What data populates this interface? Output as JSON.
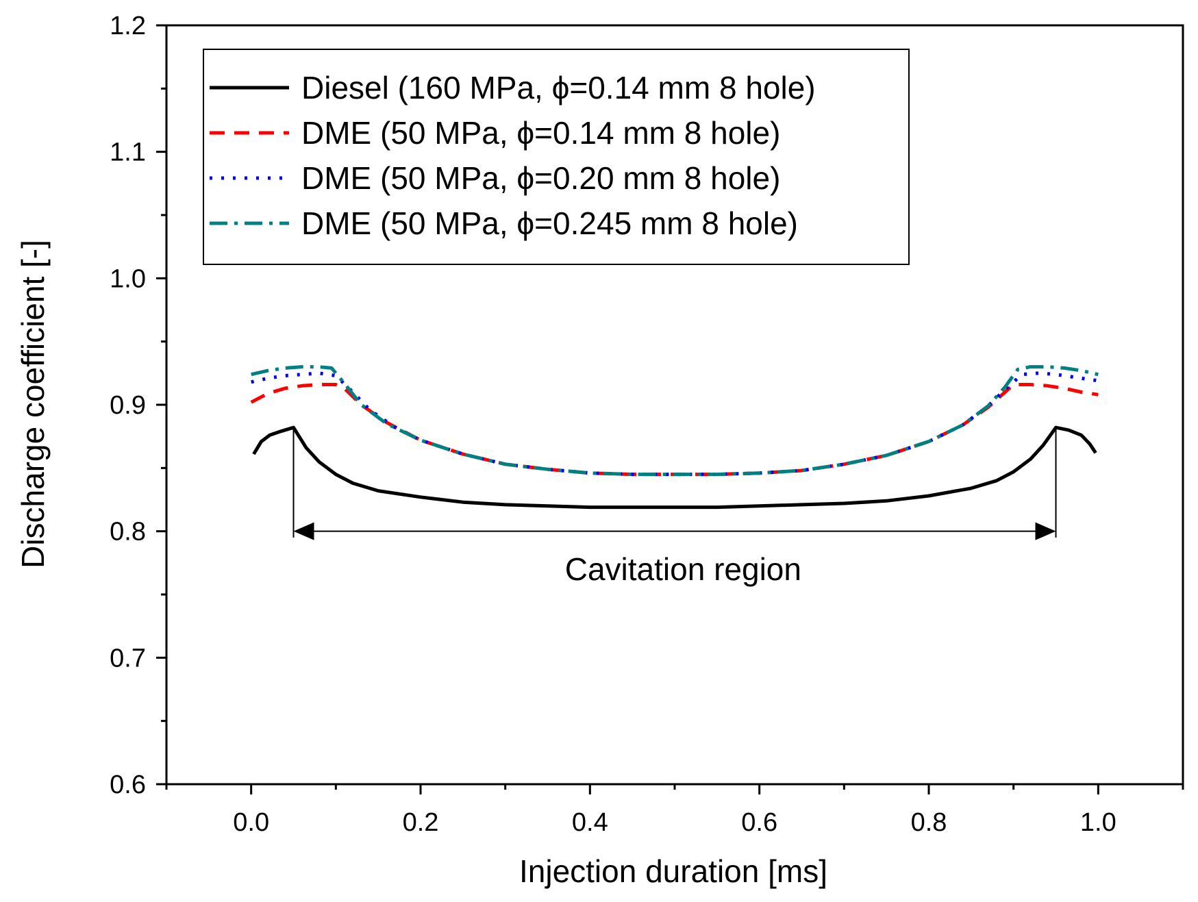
{
  "chart_data": {
    "type": "line",
    "title": "",
    "xlabel": "Injection duration [ms]",
    "ylabel": "Discharge coefficient [-]",
    "xlim": [
      -0.1,
      1.1
    ],
    "ylim": [
      0.6,
      1.2
    ],
    "xticks": [
      0.0,
      0.2,
      0.4,
      0.6,
      0.8,
      1.0
    ],
    "xtick_labels": [
      "0.0",
      "0.2",
      "0.4",
      "0.6",
      "0.8",
      "1.0"
    ],
    "xminor": [
      -0.1,
      0.1,
      0.3,
      0.5,
      0.7,
      0.9,
      1.1
    ],
    "yticks": [
      0.6,
      0.7,
      0.8,
      0.9,
      1.0,
      1.1,
      1.2
    ],
    "ytick_labels": [
      "0.6",
      "0.7",
      "0.8",
      "0.9",
      "1.0",
      "1.1",
      "1.2"
    ],
    "yminor": [
      0.65,
      0.75,
      0.85,
      0.95,
      1.05,
      1.15
    ],
    "legend_position": "top-left",
    "series": [
      {
        "name": "Diesel (160 MPa, ϕ=0.14 mm 8 hole)",
        "color": "#000000",
        "dash": "solid",
        "x": [
          0.003,
          0.012,
          0.022,
          0.035,
          0.05,
          0.065,
          0.08,
          0.1,
          0.12,
          0.15,
          0.2,
          0.25,
          0.3,
          0.35,
          0.4,
          0.45,
          0.5,
          0.55,
          0.6,
          0.65,
          0.7,
          0.75,
          0.8,
          0.85,
          0.88,
          0.9,
          0.92,
          0.935,
          0.95,
          0.965,
          0.98,
          0.99,
          0.997
        ],
        "y": [
          0.861,
          0.871,
          0.876,
          0.879,
          0.882,
          0.866,
          0.855,
          0.845,
          0.838,
          0.832,
          0.827,
          0.823,
          0.821,
          0.82,
          0.819,
          0.819,
          0.819,
          0.819,
          0.82,
          0.821,
          0.822,
          0.824,
          0.828,
          0.834,
          0.84,
          0.847,
          0.857,
          0.868,
          0.882,
          0.88,
          0.876,
          0.869,
          0.862
        ]
      },
      {
        "name": "DME (50 MPa, ϕ=0.14 mm 8 hole)",
        "color": "#ff0000",
        "dash": "dash",
        "x": [
          0.0,
          0.02,
          0.04,
          0.06,
          0.08,
          0.1,
          0.11,
          0.13,
          0.16,
          0.2,
          0.25,
          0.3,
          0.35,
          0.4,
          0.45,
          0.5,
          0.55,
          0.6,
          0.65,
          0.7,
          0.75,
          0.8,
          0.84,
          0.87,
          0.89,
          0.9,
          0.92,
          0.94,
          0.96,
          0.98,
          1.0
        ],
        "y": [
          0.902,
          0.909,
          0.913,
          0.915,
          0.916,
          0.916,
          0.913,
          0.9,
          0.886,
          0.872,
          0.861,
          0.853,
          0.849,
          0.846,
          0.845,
          0.845,
          0.845,
          0.846,
          0.848,
          0.853,
          0.86,
          0.871,
          0.884,
          0.898,
          0.91,
          0.916,
          0.916,
          0.915,
          0.913,
          0.91,
          0.908
        ]
      },
      {
        "name": "DME (50 MPa, ϕ=0.20 mm 8 hole)",
        "color": "#0000ff",
        "dash": "dot",
        "x": [
          0.0,
          0.02,
          0.04,
          0.06,
          0.08,
          0.1,
          0.12,
          0.14,
          0.17,
          0.2,
          0.25,
          0.3,
          0.35,
          0.4,
          0.45,
          0.5,
          0.55,
          0.6,
          0.65,
          0.7,
          0.75,
          0.8,
          0.84,
          0.87,
          0.89,
          0.91,
          0.93,
          0.95,
          0.97,
          0.99,
          1.0
        ],
        "y": [
          0.918,
          0.921,
          0.923,
          0.924,
          0.925,
          0.923,
          0.91,
          0.896,
          0.882,
          0.872,
          0.861,
          0.853,
          0.849,
          0.846,
          0.845,
          0.845,
          0.845,
          0.846,
          0.848,
          0.853,
          0.86,
          0.871,
          0.884,
          0.899,
          0.912,
          0.924,
          0.925,
          0.924,
          0.922,
          0.92,
          0.919
        ]
      },
      {
        "name": "DME (50 MPa, ϕ=0.245 mm 8 hole)",
        "color": "#008080",
        "dash": "dashdot",
        "x": [
          0.0,
          0.02,
          0.04,
          0.06,
          0.08,
          0.095,
          0.11,
          0.13,
          0.16,
          0.2,
          0.25,
          0.3,
          0.35,
          0.4,
          0.45,
          0.5,
          0.55,
          0.6,
          0.65,
          0.7,
          0.75,
          0.8,
          0.84,
          0.87,
          0.89,
          0.905,
          0.92,
          0.94,
          0.96,
          0.98,
          1.0
        ],
        "y": [
          0.924,
          0.927,
          0.929,
          0.93,
          0.93,
          0.929,
          0.917,
          0.9,
          0.885,
          0.872,
          0.861,
          0.853,
          0.849,
          0.846,
          0.845,
          0.845,
          0.845,
          0.846,
          0.848,
          0.853,
          0.86,
          0.871,
          0.884,
          0.899,
          0.914,
          0.928,
          0.93,
          0.93,
          0.929,
          0.927,
          0.924
        ]
      }
    ],
    "annotation": {
      "text": "Cavitation region",
      "x_start": 0.05,
      "x_end": 0.95,
      "arrow_y": 0.8,
      "text_x": 0.51,
      "text_y": 0.77,
      "marker_top_y": 0.882,
      "marker_bottom_y": 0.795
    }
  }
}
